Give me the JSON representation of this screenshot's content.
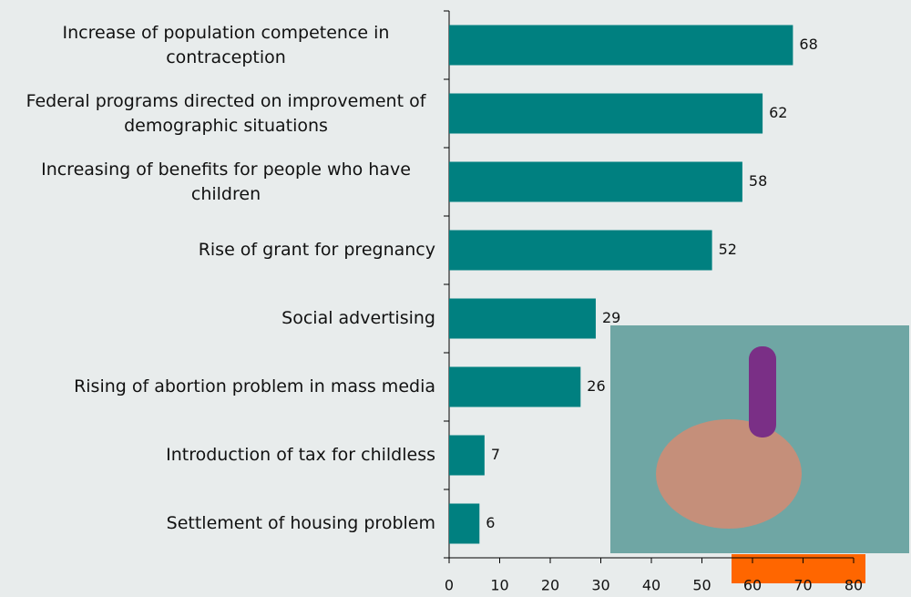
{
  "chart_data": {
    "type": "bar",
    "orientation": "horizontal",
    "categories": [
      "Increase of population competence in contraception",
      "Federal programs directed on improvement of demographic situations",
      "Increasing of benefits for people who have children",
      "Rise of grant for pregnancy",
      "Social advertising",
      "Rising of abortion problem in mass media",
      "Introduction of tax for childless",
      "Settlement of housing problem"
    ],
    "values": [
      68,
      62,
      58,
      52,
      29,
      26,
      7,
      6
    ],
    "color": "#008080",
    "xlim": [
      0,
      80
    ],
    "xticks": [
      0,
      10,
      20,
      30,
      40,
      50,
      60,
      70,
      80
    ]
  }
}
